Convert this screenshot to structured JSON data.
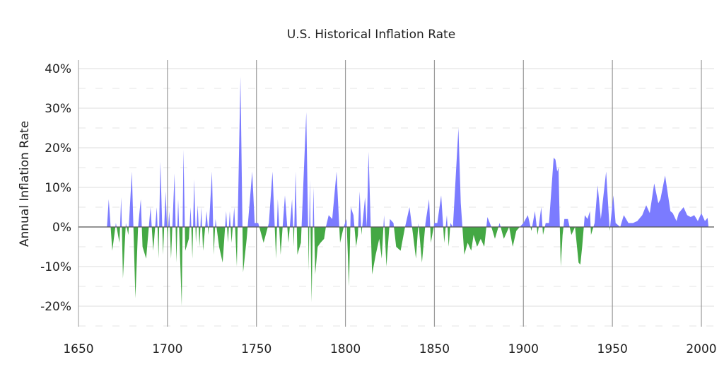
{
  "chart_data": {
    "type": "area",
    "title": "U.S. Historical Inflation Rate",
    "xlabel": "",
    "ylabel": "Annual Inflation Rate",
    "xlim": [
      1650,
      2007
    ],
    "ylim": [
      -25,
      42
    ],
    "x_ticks": [
      1650,
      1700,
      1750,
      1800,
      1850,
      1900,
      1950,
      2000
    ],
    "y_ticks": [
      -20,
      -10,
      0,
      10,
      20,
      30,
      40
    ],
    "y_tick_labels": [
      "-20%",
      "-10%",
      "0%",
      "10%",
      "20%",
      "30%",
      "40%"
    ],
    "grid": true,
    "legend": "none",
    "colors": {
      "positive": "#7b7bff",
      "negative": "#44a844"
    },
    "points": [
      [
        1666,
        0
      ],
      [
        1667,
        7
      ],
      [
        1669,
        -6
      ],
      [
        1671,
        1
      ],
      [
        1673,
        -4
      ],
      [
        1674,
        7.5
      ],
      [
        1675,
        -13
      ],
      [
        1676.6,
        1
      ],
      [
        1678,
        -2
      ],
      [
        1680,
        14
      ],
      [
        1682,
        -18
      ],
      [
        1683.5,
        0
      ],
      [
        1685,
        7
      ],
      [
        1686,
        -5
      ],
      [
        1688,
        -8
      ],
      [
        1690.5,
        5
      ],
      [
        1692,
        -6
      ],
      [
        1694,
        5
      ],
      [
        1695,
        -8
      ],
      [
        1696,
        16.5
      ],
      [
        1697.5,
        -7
      ],
      [
        1699,
        9
      ],
      [
        1700,
        -3
      ],
      [
        1701,
        4
      ],
      [
        1702,
        -8
      ],
      [
        1704,
        13.5
      ],
      [
        1705,
        -9
      ],
      [
        1706,
        7
      ],
      [
        1708,
        -20
      ],
      [
        1709,
        19.5
      ],
      [
        1710,
        -6
      ],
      [
        1712,
        -3
      ],
      [
        1713,
        5
      ],
      [
        1714,
        -8
      ],
      [
        1715,
        12
      ],
      [
        1716,
        -4
      ],
      [
        1717,
        5.5
      ],
      [
        1718,
        -5
      ],
      [
        1719,
        5
      ],
      [
        1720,
        -6
      ],
      [
        1722,
        4
      ],
      [
        1723,
        -2
      ],
      [
        1725,
        14
      ],
      [
        1726,
        -7
      ],
      [
        1727,
        2
      ],
      [
        1729,
        -5
      ],
      [
        1731,
        -9
      ],
      [
        1733,
        4
      ],
      [
        1734,
        -4
      ],
      [
        1735,
        4
      ],
      [
        1736,
        -4
      ],
      [
        1737.5,
        5
      ],
      [
        1739,
        -10
      ],
      [
        1741,
        38
      ],
      [
        1742.5,
        -11.5
      ],
      [
        1744.5,
        -3
      ],
      [
        1747.6,
        14
      ],
      [
        1749,
        1
      ],
      [
        1751,
        1
      ],
      [
        1754,
        -4
      ],
      [
        1757,
        1
      ],
      [
        1759,
        14
      ],
      [
        1761,
        -8
      ],
      [
        1762,
        7
      ],
      [
        1763.6,
        -7
      ],
      [
        1766,
        8
      ],
      [
        1768,
        -4
      ],
      [
        1770,
        7
      ],
      [
        1771,
        -5
      ],
      [
        1772,
        14
      ],
      [
        1773,
        -7
      ],
      [
        1775,
        -4
      ],
      [
        1778,
        29
      ],
      [
        1779.4,
        -11
      ],
      [
        1780,
        12
      ],
      [
        1781,
        -19
      ],
      [
        1782,
        10
      ],
      [
        1783,
        -12
      ],
      [
        1784.4,
        -5
      ],
      [
        1786,
        -4
      ],
      [
        1788,
        -3
      ],
      [
        1789,
        0
      ],
      [
        1790.6,
        3
      ],
      [
        1792.6,
        2
      ],
      [
        1795,
        14
      ],
      [
        1797,
        -4
      ],
      [
        1799,
        0
      ],
      [
        1800.6,
        2
      ],
      [
        1802,
        -15
      ],
      [
        1803,
        5
      ],
      [
        1804.5,
        3
      ],
      [
        1806,
        -5
      ],
      [
        1807,
        -2
      ],
      [
        1808,
        9
      ],
      [
        1809,
        -2
      ],
      [
        1811,
        7.5
      ],
      [
        1812,
        0
      ],
      [
        1813,
        19
      ],
      [
        1815,
        -12
      ],
      [
        1817,
        -7
      ],
      [
        1819,
        -3
      ],
      [
        1820.4,
        -8
      ],
      [
        1821.7,
        3
      ],
      [
        1823,
        -10
      ],
      [
        1825,
        2
      ],
      [
        1827,
        1
      ],
      [
        1828.5,
        -5
      ],
      [
        1831,
        -6
      ],
      [
        1833.5,
        0
      ],
      [
        1836,
        5
      ],
      [
        1838,
        -2
      ],
      [
        1839.6,
        -8
      ],
      [
        1841,
        1
      ],
      [
        1843,
        -9
      ],
      [
        1845,
        1
      ],
      [
        1847,
        7
      ],
      [
        1848,
        -4
      ],
      [
        1850,
        1
      ],
      [
        1851.6,
        1
      ],
      [
        1853.8,
        8
      ],
      [
        1855.5,
        -4
      ],
      [
        1857,
        3
      ],
      [
        1858,
        -5
      ],
      [
        1859,
        1
      ],
      [
        1860.4,
        0
      ],
      [
        1863.5,
        25
      ],
      [
        1864.8,
        6
      ],
      [
        1866.8,
        -7
      ],
      [
        1868.7,
        -4
      ],
      [
        1870.7,
        -6
      ],
      [
        1872,
        -2
      ],
      [
        1874,
        -5
      ],
      [
        1876,
        -3
      ],
      [
        1878,
        -5
      ],
      [
        1879.8,
        2.5
      ],
      [
        1882,
        0
      ],
      [
        1884,
        -3
      ],
      [
        1886.6,
        1
      ],
      [
        1889,
        -3
      ],
      [
        1892,
        0
      ],
      [
        1894,
        -5
      ],
      [
        1896,
        -1
      ],
      [
        1897,
        -0.5
      ],
      [
        1900,
        1
      ],
      [
        1902.5,
        3
      ],
      [
        1904.5,
        -1
      ],
      [
        1906.5,
        4
      ],
      [
        1908,
        -2
      ],
      [
        1910,
        5
      ],
      [
        1911,
        -2
      ],
      [
        1912.5,
        1
      ],
      [
        1914.4,
        1
      ],
      [
        1917,
        17.5
      ],
      [
        1918,
        17
      ],
      [
        1919,
        14
      ],
      [
        1919.7,
        15
      ],
      [
        1921,
        -10
      ],
      [
        1922,
        -2
      ],
      [
        1923,
        2
      ],
      [
        1925,
        2
      ],
      [
        1927,
        -2
      ],
      [
        1929,
        0
      ],
      [
        1931,
        -9
      ],
      [
        1932,
        -9.5
      ],
      [
        1933,
        -5
      ],
      [
        1934.5,
        3
      ],
      [
        1936,
        2
      ],
      [
        1937.4,
        4
      ],
      [
        1938,
        -2
      ],
      [
        1940,
        1
      ],
      [
        1941.7,
        10.5
      ],
      [
        1943.5,
        2
      ],
      [
        1946.5,
        14
      ],
      [
        1948.5,
        -1
      ],
      [
        1950.5,
        8
      ],
      [
        1951.8,
        1
      ],
      [
        1954.4,
        0
      ],
      [
        1956.4,
        3
      ],
      [
        1959,
        1
      ],
      [
        1961.6,
        1
      ],
      [
        1964,
        1.5
      ],
      [
        1966.8,
        3
      ],
      [
        1969,
        5.5
      ],
      [
        1971,
        3.5
      ],
      [
        1973.5,
        11
      ],
      [
        1975.8,
        6
      ],
      [
        1977,
        7
      ],
      [
        1979.6,
        13
      ],
      [
        1982.6,
        4
      ],
      [
        1983.9,
        3.5
      ],
      [
        1986,
        1.5
      ],
      [
        1987.3,
        3.5
      ],
      [
        1990,
        5
      ],
      [
        1992,
        3
      ],
      [
        1994,
        2.5
      ],
      [
        1996,
        3
      ],
      [
        1998,
        1.5
      ],
      [
        2000,
        3.5
      ],
      [
        2002,
        1.5
      ],
      [
        2003.5,
        2.3
      ],
      [
        2004,
        0
      ]
    ]
  }
}
